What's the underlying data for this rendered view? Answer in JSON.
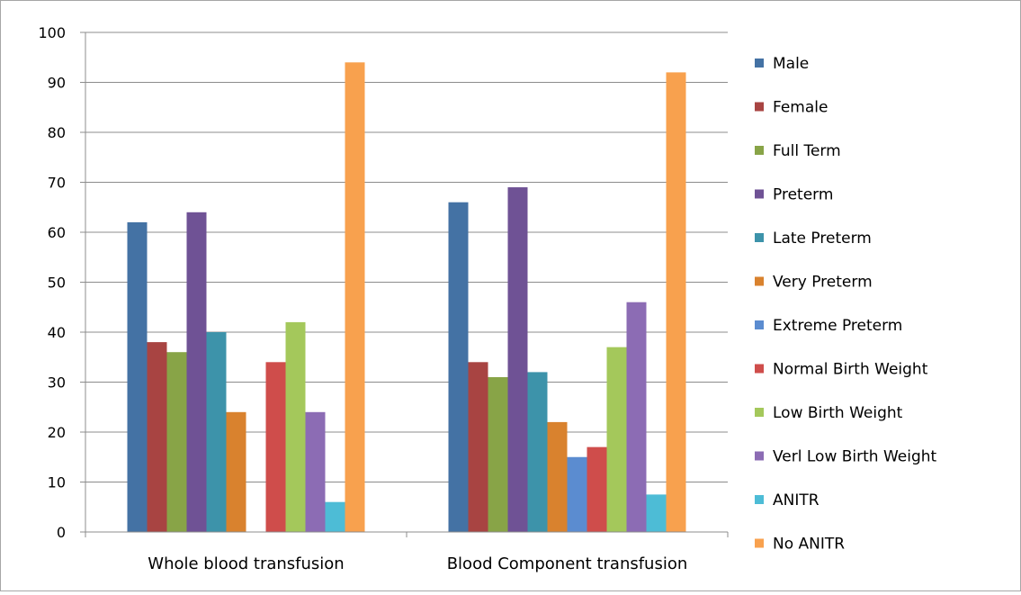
{
  "chart_data": {
    "type": "bar",
    "categories": [
      "Whole blood transfusion",
      "Blood Component transfusion"
    ],
    "ylim": [
      0,
      100
    ],
    "yticks": [
      0,
      10,
      20,
      30,
      40,
      50,
      60,
      70,
      80,
      90,
      100
    ],
    "grid": true,
    "legend_position": "right",
    "series": [
      {
        "name": "Male",
        "color": "#4472a4",
        "values": [
          62,
          66
        ]
      },
      {
        "name": "Female",
        "color": "#a84442",
        "values": [
          38,
          34
        ]
      },
      {
        "name": "Full Term",
        "color": "#88a447",
        "values": [
          36,
          31
        ]
      },
      {
        "name": "Preterm",
        "color": "#6f5295",
        "values": [
          64,
          69
        ]
      },
      {
        "name": "Late Preterm",
        "color": "#3d93aa",
        "values": [
          40,
          32
        ]
      },
      {
        "name": "Very Preterm",
        "color": "#d9822e",
        "values": [
          24,
          22
        ]
      },
      {
        "name": "Extreme Preterm",
        "color": "#5b8cd0",
        "values": [
          null,
          15
        ]
      },
      {
        "name": "Normal Birth Weight",
        "color": "#cf4d4b",
        "values": [
          34,
          17
        ]
      },
      {
        "name": "Low Birth Weight",
        "color": "#a4c85b",
        "values": [
          42,
          37
        ]
      },
      {
        "name": "Verl Low Birth Weight",
        "color": "#8c6cb4",
        "values": [
          24,
          46
        ]
      },
      {
        "name": "ANITR",
        "color": "#4dbcd6",
        "values": [
          6,
          7.5
        ]
      },
      {
        "name": "No ANITR",
        "color": "#f8a14e",
        "values": [
          94,
          92
        ]
      }
    ]
  }
}
